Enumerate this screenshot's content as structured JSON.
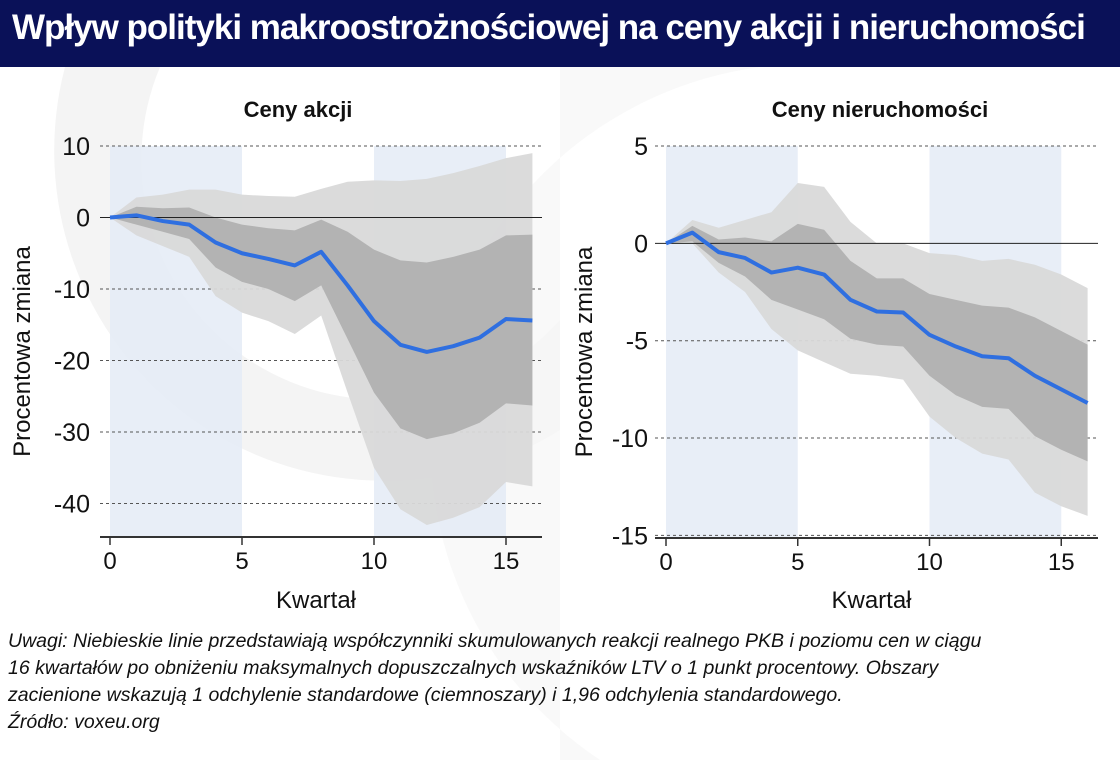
{
  "title": "Wpływ polityki makroostrożnościowej na ceny akcji i nieruchomości",
  "colors": {
    "title_bg": "#0a1158",
    "line": "#2f6fe0",
    "band_dark": "#b3b3b3",
    "band_light": "#d9d9d9",
    "shade": "#e4ebf6"
  },
  "notes": [
    "Uwagi: Niebieskie linie przedstawiają współczynniki skumulowanych reakcji realnego PKB i poziomu cen w ciągu",
    "16 kwartałów po obniżeniu maksymalnych dopuszczalnych wskaźników LTV o 1 punkt procentowy. Obszary",
    "zacienione wskazują 1 odchylenie standardowe (ciemnoszary) i 1,96 odchylenia standardowego.",
    "Źródło: voxeu.org"
  ],
  "chart_data": [
    {
      "type": "line",
      "title": "Ceny akcji",
      "xlabel": "Kwartał",
      "ylabel": "Procentowa zmiana",
      "xlim": [
        0,
        16
      ],
      "ylim": [
        -45,
        10
      ],
      "yticks": [
        10,
        0,
        -10,
        -20,
        -30,
        -40
      ],
      "xticks": [
        0,
        5,
        10,
        15
      ],
      "shaded_periods": [
        [
          0,
          5
        ],
        [
          10,
          15
        ]
      ],
      "grid": true,
      "x": [
        0,
        1,
        2,
        3,
        4,
        5,
        6,
        7,
        8,
        9,
        10,
        11,
        12,
        13,
        14,
        15,
        16
      ],
      "series": [
        {
          "name": "response",
          "values": [
            0,
            0.3,
            -0.5,
            -1,
            -3.5,
            -5,
            -5.8,
            -6.7,
            -4.8,
            -9.5,
            -14.5,
            -17.8,
            -18.8,
            -18,
            -16.8,
            -14.2,
            -14.4
          ]
        },
        {
          "name": "1sd_upper",
          "values": [
            0,
            1.5,
            1.3,
            1.4,
            0,
            -1,
            -1.5,
            -1.8,
            -0.3,
            -2,
            -4.5,
            -6,
            -6.3,
            -5.5,
            -4.5,
            -2.5,
            -2.4
          ]
        },
        {
          "name": "1sd_lower",
          "values": [
            0,
            -1,
            -2,
            -3,
            -7,
            -9,
            -10,
            -11.7,
            -9.5,
            -17,
            -24.5,
            -29.5,
            -31,
            -30.2,
            -28.7,
            -26,
            -26.3
          ]
        },
        {
          "name": "1.96sd_upper",
          "values": [
            0,
            2.8,
            3.2,
            3.9,
            3.9,
            3.2,
            3,
            2.9,
            4,
            5,
            5.2,
            5.1,
            5.4,
            6.2,
            7.2,
            8.3,
            9
          ]
        },
        {
          "name": "1.96sd_lower",
          "values": [
            0,
            -2.5,
            -4,
            -5.5,
            -11,
            -13.3,
            -14.5,
            -16.3,
            -13.7,
            -24.5,
            -35,
            -40.8,
            -43,
            -42,
            -40.5,
            -37,
            -37.6
          ]
        }
      ]
    },
    {
      "type": "line",
      "title": "Ceny nieruchomości",
      "xlabel": "Kwartał",
      "ylabel": "Procentowa zmiana",
      "xlim": [
        0,
        16
      ],
      "ylim": [
        -15,
        5
      ],
      "yticks": [
        5,
        0,
        -5,
        -10,
        -15
      ],
      "xticks": [
        0,
        5,
        10,
        15
      ],
      "shaded_periods": [
        [
          0,
          5
        ],
        [
          10,
          15
        ]
      ],
      "grid": true,
      "x": [
        0,
        1,
        2,
        3,
        4,
        5,
        6,
        7,
        8,
        9,
        10,
        11,
        12,
        13,
        14,
        15,
        16
      ],
      "series": [
        {
          "name": "response",
          "values": [
            0,
            0.55,
            -0.45,
            -0.75,
            -1.5,
            -1.25,
            -1.6,
            -2.9,
            -3.5,
            -3.55,
            -4.7,
            -5.3,
            -5.8,
            -5.9,
            -6.8,
            -7.5,
            -8.2
          ]
        },
        {
          "name": "1sd_upper",
          "values": [
            0,
            0.9,
            0.2,
            0.3,
            0.1,
            1,
            0.7,
            -0.9,
            -1.8,
            -1.8,
            -2.6,
            -2.9,
            -3.2,
            -3.3,
            -3.8,
            -4.5,
            -5.2
          ]
        },
        {
          "name": "1sd_lower",
          "values": [
            0,
            0.1,
            -1,
            -1.7,
            -2.9,
            -3.4,
            -3.9,
            -4.9,
            -5.2,
            -5.3,
            -6.8,
            -7.8,
            -8.4,
            -8.5,
            -9.9,
            -10.6,
            -11.2
          ]
        },
        {
          "name": "1.96sd_upper",
          "values": [
            0,
            1.2,
            0.8,
            1.2,
            1.6,
            3.1,
            2.9,
            1.1,
            0,
            0,
            -0.5,
            -0.6,
            -0.9,
            -0.8,
            -1.1,
            -1.6,
            -2.3
          ]
        },
        {
          "name": "1.96sd_lower",
          "values": [
            0,
            0,
            -1.5,
            -2.5,
            -4.4,
            -5.5,
            -6.1,
            -6.7,
            -6.8,
            -7,
            -8.9,
            -10,
            -10.8,
            -11.1,
            -12.8,
            -13.5,
            -14
          ]
        }
      ]
    }
  ]
}
